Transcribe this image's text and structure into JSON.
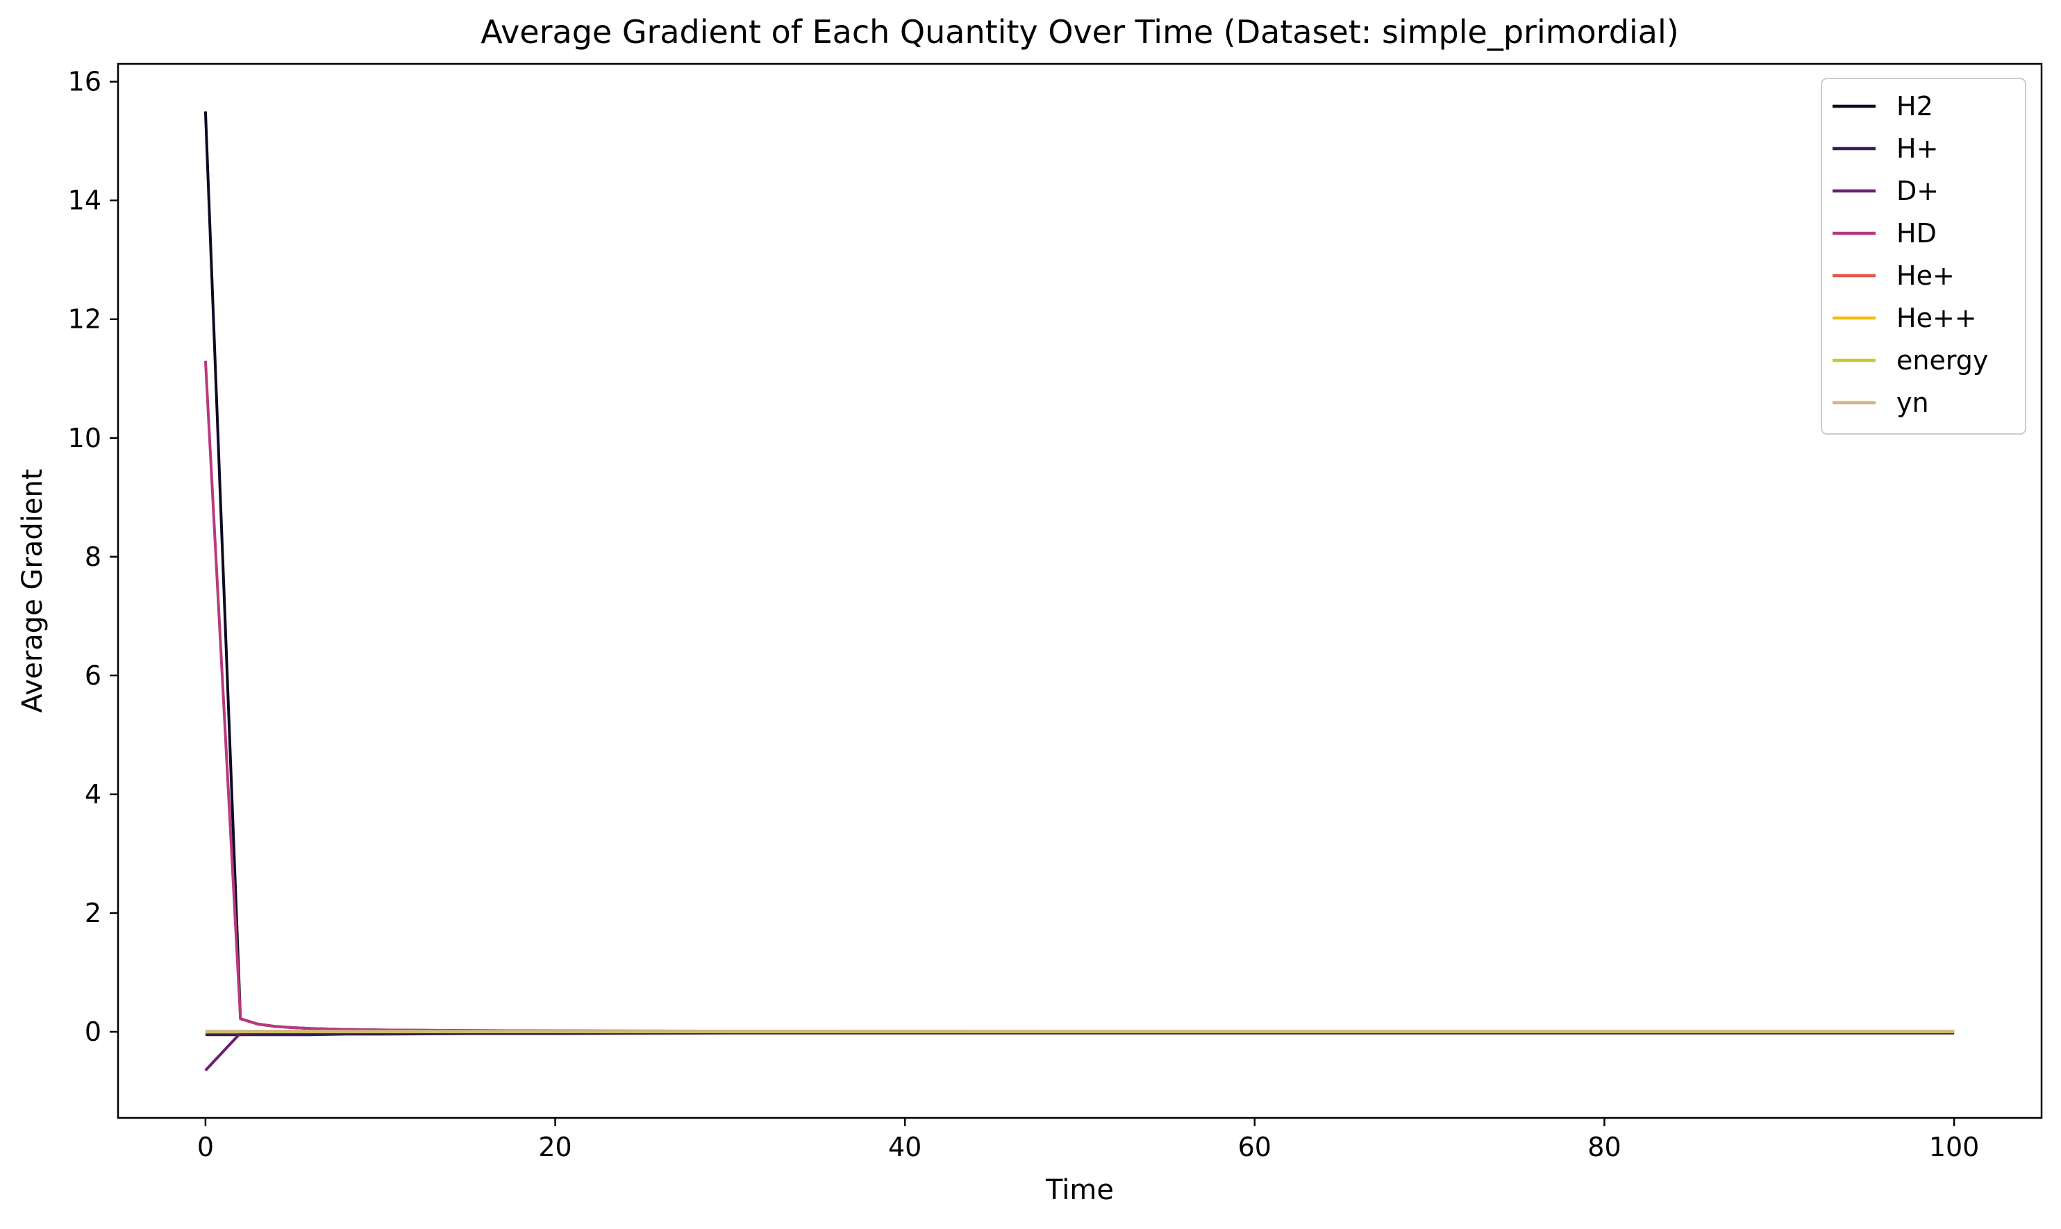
{
  "chart_data": {
    "type": "line",
    "title": "Average Gradient of Each Quantity Over Time (Dataset: simple_primordial)",
    "xlabel": "Time",
    "ylabel": "Average Gradient",
    "xlim": [
      -5,
      105
    ],
    "ylim": [
      -1.45,
      16.3
    ],
    "xticks": [
      0,
      20,
      40,
      60,
      80,
      100
    ],
    "yticks": [
      0,
      2,
      4,
      6,
      8,
      10,
      12,
      14,
      16
    ],
    "grid": false,
    "legend_position": "top-right",
    "x": [
      0,
      2,
      3,
      4,
      5,
      6,
      8,
      10,
      15,
      20,
      30,
      40,
      50,
      60,
      70,
      80,
      90,
      100
    ],
    "series": [
      {
        "name": "H2",
        "color": "#0e0a24",
        "values": [
          15.5,
          0.22,
          0.13,
          0.09,
          0.07,
          0.055,
          0.04,
          0.03,
          0.02,
          0.015,
          0.01,
          0.008,
          0.006,
          0.005,
          0.004,
          0.004,
          0.003,
          0.003
        ]
      },
      {
        "name": "H+",
        "color": "#3b1c5a",
        "values": [
          -0.05,
          -0.05,
          -0.05,
          -0.05,
          -0.05,
          -0.05,
          -0.04,
          -0.04,
          -0.03,
          -0.03,
          -0.02,
          -0.02,
          -0.02,
          -0.02,
          -0.02,
          -0.02,
          -0.02,
          -0.02
        ]
      },
      {
        "name": "D+",
        "color": "#6a1d72",
        "values": [
          -0.65,
          -0.02,
          -0.015,
          -0.012,
          -0.01,
          -0.009,
          -0.008,
          -0.007,
          -0.006,
          -0.005,
          -0.004,
          -0.004,
          -0.003,
          -0.003,
          -0.003,
          -0.003,
          -0.003,
          -0.003
        ]
      },
      {
        "name": "HD",
        "color": "#b83a7e",
        "values": [
          11.3,
          0.22,
          0.13,
          0.09,
          0.07,
          0.055,
          0.04,
          0.03,
          0.02,
          0.015,
          0.01,
          0.008,
          0.006,
          0.005,
          0.004,
          0.004,
          0.003,
          0.003
        ]
      },
      {
        "name": "He+",
        "color": "#e05c4a",
        "values": [
          0,
          0,
          0,
          0,
          0,
          0,
          0,
          0,
          0,
          0,
          0,
          0,
          0,
          0,
          0,
          0,
          0,
          0
        ]
      },
      {
        "name": "He++",
        "color": "#f5bc10",
        "values": [
          0,
          0,
          0,
          0,
          0,
          0,
          0,
          0,
          0,
          0,
          0,
          0,
          0,
          0,
          0,
          0,
          0,
          0
        ]
      },
      {
        "name": "energy",
        "color": "#c2cd30",
        "values": [
          0,
          0,
          0,
          0,
          0,
          0,
          0,
          0,
          0,
          0,
          0,
          0,
          0,
          0,
          0,
          0,
          0,
          0
        ]
      },
      {
        "name": "yn",
        "color": "#d2b486",
        "values": [
          0.01,
          0.01,
          0.01,
          0.01,
          0.01,
          0.01,
          0.01,
          0.01,
          0.01,
          0.01,
          0.01,
          0.01,
          0.01,
          0.01,
          0.01,
          0.01,
          0.01,
          0.01
        ]
      }
    ]
  }
}
